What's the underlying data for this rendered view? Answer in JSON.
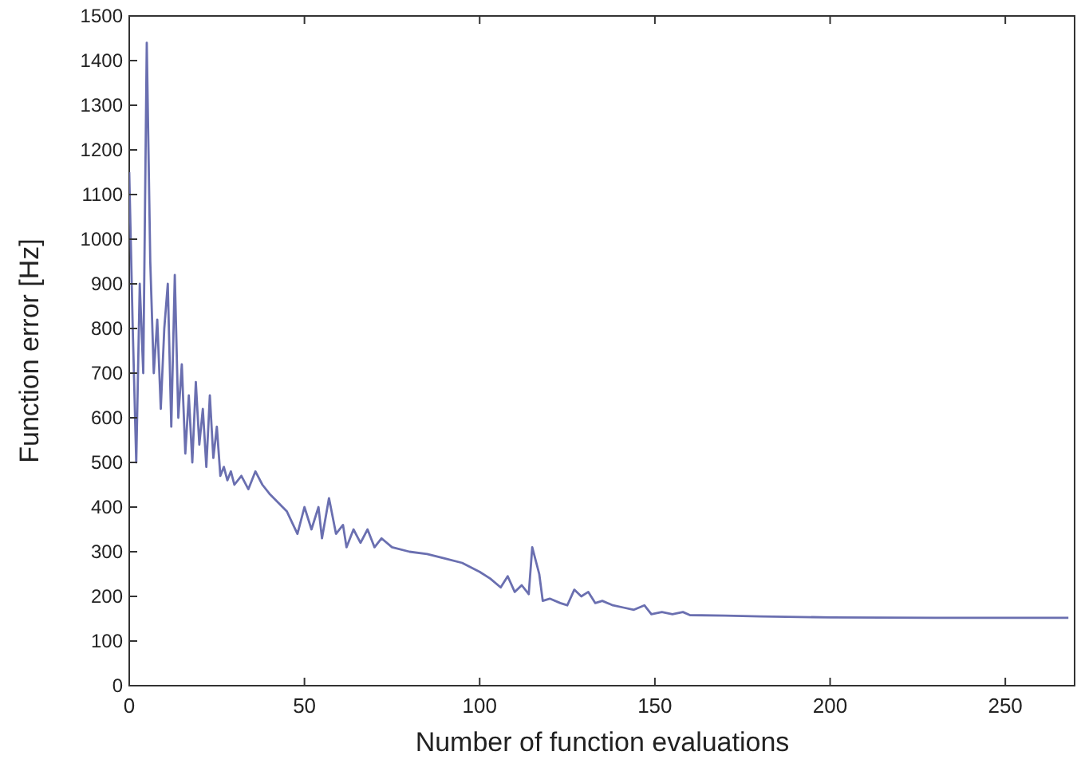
{
  "chart_data": {
    "type": "line",
    "xlabel": "Number of function evaluations",
    "ylabel": "Function error [Hz]",
    "xlim": [
      0,
      270
    ],
    "xticks": [
      0,
      50,
      100,
      150,
      200,
      250
    ],
    "ylim": [
      0,
      1500
    ],
    "yticks": [
      0,
      100,
      200,
      300,
      400,
      500,
      600,
      700,
      800,
      900,
      1000,
      1100,
      1200,
      1300,
      1400,
      1500
    ],
    "grid": false,
    "series": [
      {
        "color": "#6a6fb0",
        "x": [
          0,
          1,
          2,
          3,
          4,
          5,
          6,
          7,
          8,
          9,
          10,
          11,
          12,
          13,
          14,
          15,
          16,
          17,
          18,
          19,
          20,
          21,
          22,
          23,
          24,
          25,
          26,
          27,
          28,
          29,
          30,
          32,
          34,
          36,
          38,
          40,
          45,
          48,
          50,
          52,
          54,
          55,
          57,
          59,
          61,
          62,
          64,
          66,
          68,
          70,
          72,
          75,
          80,
          85,
          90,
          95,
          100,
          103,
          106,
          108,
          110,
          112,
          114,
          115,
          117,
          118,
          120,
          123,
          125,
          127,
          129,
          131,
          133,
          135,
          138,
          141,
          144,
          147,
          149,
          152,
          155,
          158,
          160,
          170,
          180,
          200,
          230,
          268
        ],
        "values": [
          1150,
          800,
          500,
          900,
          700,
          1440,
          950,
          700,
          820,
          620,
          800,
          900,
          580,
          920,
          600,
          720,
          520,
          650,
          500,
          680,
          540,
          620,
          490,
          650,
          510,
          580,
          470,
          490,
          460,
          480,
          450,
          470,
          440,
          480,
          450,
          430,
          390,
          340,
          400,
          350,
          400,
          330,
          420,
          340,
          360,
          310,
          350,
          320,
          350,
          310,
          330,
          310,
          300,
          295,
          285,
          275,
          255,
          240,
          220,
          245,
          210,
          225,
          205,
          310,
          250,
          190,
          195,
          185,
          180,
          215,
          200,
          210,
          185,
          190,
          180,
          175,
          170,
          180,
          160,
          165,
          160,
          165,
          158,
          157,
          155,
          153,
          152,
          152
        ]
      }
    ]
  }
}
